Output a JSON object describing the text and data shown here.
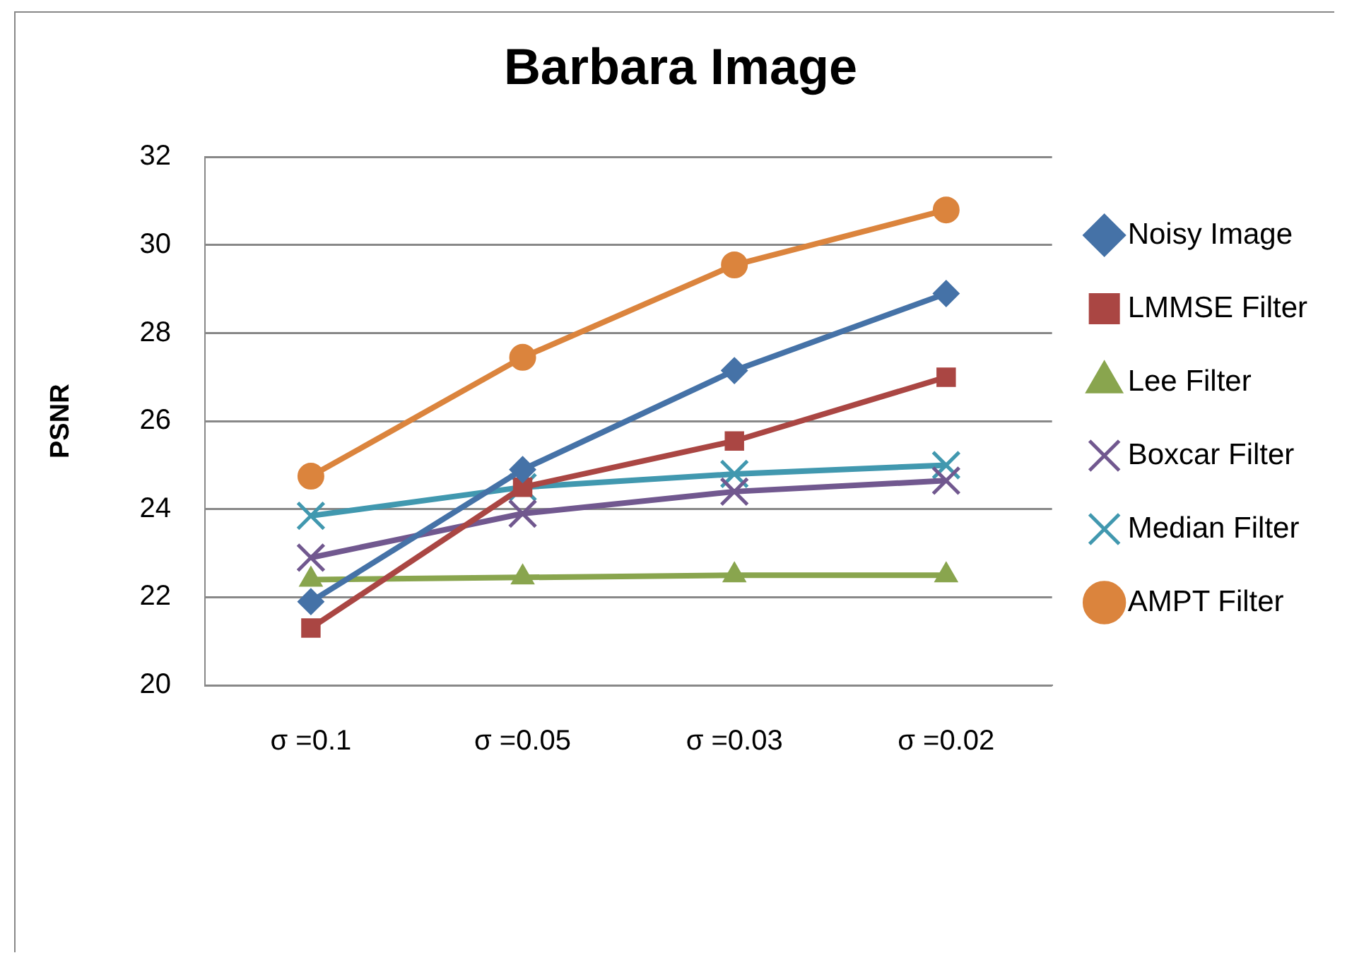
{
  "chart_data": {
    "type": "line",
    "title": "Barbara Image",
    "ylabel": "PSNR",
    "categories": [
      "σ =0.1",
      "σ =0.05",
      "σ =0.03",
      "σ =0.02"
    ],
    "series": [
      {
        "name": "Noisy Image",
        "color": "#4572a7",
        "marker": "diamond",
        "values": [
          21.9,
          24.9,
          27.15,
          28.9
        ]
      },
      {
        "name": "LMMSE Filter",
        "color": "#aa4643",
        "marker": "square",
        "values": [
          21.3,
          24.5,
          25.55,
          27.0
        ]
      },
      {
        "name": "Lee Filter",
        "color": "#89a54e",
        "marker": "triangle",
        "values": [
          22.4,
          22.45,
          22.5,
          22.5
        ]
      },
      {
        "name": "Boxcar Filter",
        "color": "#71588f",
        "marker": "cross",
        "values": [
          22.9,
          23.9,
          24.4,
          24.65
        ]
      },
      {
        "name": "Median Filter",
        "color": "#4198af",
        "marker": "cross",
        "values": [
          23.85,
          24.5,
          24.8,
          25.0
        ]
      },
      {
        "name": "AMPT Filter",
        "color": "#db843d",
        "marker": "circle",
        "values": [
          24.75,
          27.45,
          29.55,
          30.8
        ]
      }
    ],
    "ylim": [
      20,
      32
    ],
    "yticks": [
      20,
      22,
      24,
      26,
      28,
      30,
      32
    ],
    "grid": "y",
    "legend": "right",
    "line_style": "solid"
  }
}
